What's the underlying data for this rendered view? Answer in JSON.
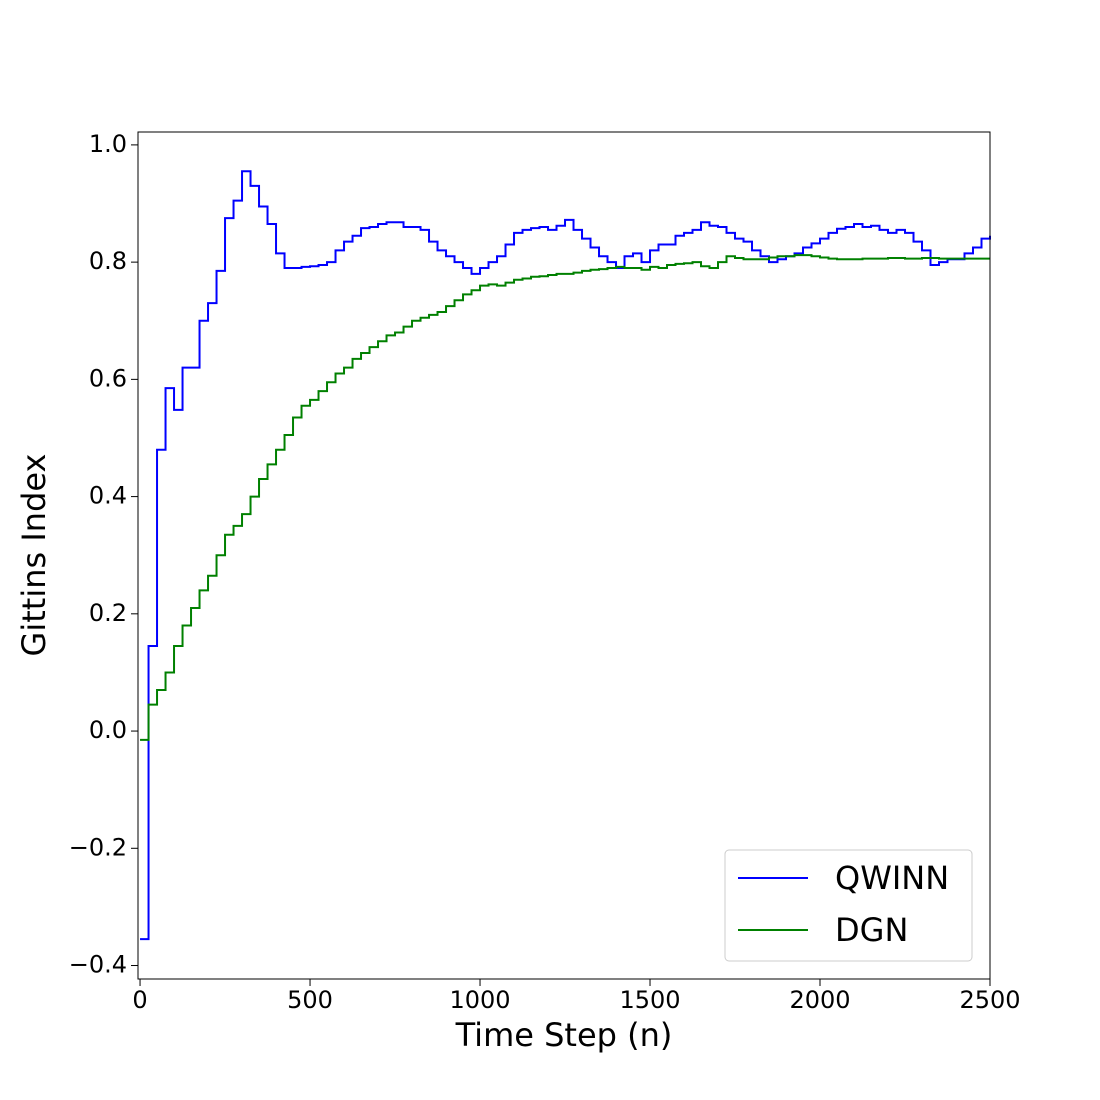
{
  "chart_data": {
    "type": "step",
    "xlabel": "Time Step (n)",
    "ylabel": "Gittins Index",
    "x": [
      0,
      25,
      50,
      75,
      100,
      125,
      150,
      175,
      200,
      225,
      250,
      275,
      300,
      325,
      350,
      375,
      400,
      425,
      450,
      475,
      500,
      525,
      550,
      575,
      600,
      625,
      650,
      675,
      700,
      725,
      750,
      775,
      800,
      825,
      850,
      875,
      900,
      925,
      950,
      975,
      1000,
      1025,
      1050,
      1075,
      1100,
      1125,
      1150,
      1175,
      1200,
      1225,
      1250,
      1275,
      1300,
      1325,
      1350,
      1375,
      1400,
      1425,
      1450,
      1475,
      1500,
      1525,
      1550,
      1575,
      1600,
      1625,
      1650,
      1675,
      1700,
      1725,
      1750,
      1775,
      1800,
      1825,
      1850,
      1875,
      1900,
      1925,
      1950,
      1975,
      2000,
      2025,
      2050,
      2075,
      2100,
      2125,
      2150,
      2175,
      2200,
      2225,
      2250,
      2275,
      2300,
      2325,
      2350,
      2375,
      2400,
      2425,
      2450,
      2475,
      2500
    ],
    "series": [
      {
        "name": "QWINN",
        "color": "#0000ff",
        "values": [
          -0.355,
          0.145,
          0.48,
          0.585,
          0.548,
          0.62,
          0.62,
          0.7,
          0.73,
          0.785,
          0.875,
          0.905,
          0.955,
          0.93,
          0.895,
          0.865,
          0.815,
          0.79,
          0.79,
          0.792,
          0.793,
          0.795,
          0.8,
          0.82,
          0.835,
          0.845,
          0.858,
          0.86,
          0.865,
          0.868,
          0.868,
          0.86,
          0.86,
          0.855,
          0.835,
          0.82,
          0.81,
          0.8,
          0.79,
          0.78,
          0.79,
          0.8,
          0.81,
          0.83,
          0.85,
          0.855,
          0.858,
          0.86,
          0.855,
          0.862,
          0.872,
          0.855,
          0.84,
          0.825,
          0.81,
          0.8,
          0.79,
          0.81,
          0.815,
          0.8,
          0.82,
          0.83,
          0.83,
          0.845,
          0.85,
          0.855,
          0.868,
          0.862,
          0.86,
          0.85,
          0.84,
          0.835,
          0.82,
          0.81,
          0.8,
          0.805,
          0.81,
          0.815,
          0.825,
          0.832,
          0.84,
          0.85,
          0.857,
          0.86,
          0.865,
          0.86,
          0.862,
          0.855,
          0.85,
          0.855,
          0.85,
          0.835,
          0.82,
          0.795,
          0.8,
          0.805,
          0.805,
          0.815,
          0.825,
          0.84,
          0.845
        ]
      },
      {
        "name": "DGN",
        "color": "#008000",
        "values": [
          -0.015,
          0.045,
          0.07,
          0.1,
          0.145,
          0.18,
          0.21,
          0.24,
          0.265,
          0.3,
          0.335,
          0.35,
          0.37,
          0.4,
          0.43,
          0.455,
          0.48,
          0.505,
          0.535,
          0.555,
          0.565,
          0.58,
          0.595,
          0.61,
          0.62,
          0.635,
          0.645,
          0.655,
          0.665,
          0.675,
          0.68,
          0.69,
          0.7,
          0.705,
          0.71,
          0.715,
          0.725,
          0.735,
          0.745,
          0.752,
          0.76,
          0.762,
          0.76,
          0.765,
          0.77,
          0.772,
          0.775,
          0.776,
          0.778,
          0.78,
          0.78,
          0.782,
          0.785,
          0.787,
          0.788,
          0.79,
          0.792,
          0.79,
          0.79,
          0.787,
          0.792,
          0.79,
          0.795,
          0.797,
          0.798,
          0.8,
          0.793,
          0.79,
          0.8,
          0.81,
          0.807,
          0.805,
          0.805,
          0.805,
          0.808,
          0.81,
          0.81,
          0.812,
          0.812,
          0.81,
          0.808,
          0.806,
          0.805,
          0.805,
          0.805,
          0.806,
          0.806,
          0.806,
          0.807,
          0.807,
          0.806,
          0.806,
          0.807,
          0.807,
          0.806,
          0.806,
          0.806,
          0.806,
          0.806,
          0.806,
          0.806
        ]
      }
    ],
    "xlim": [
      -6,
      2500
    ],
    "ylim": [
      -0.423,
      1.022
    ],
    "xticks": [
      0,
      500,
      1000,
      1500,
      2000,
      2500
    ],
    "yticks": [
      {
        "value": -0.4,
        "label": "−0.4"
      },
      {
        "value": -0.2,
        "label": "−0.2"
      },
      {
        "value": 0,
        "label": "0.0"
      },
      0.2,
      0.4,
      0.6,
      0.8,
      {
        "value": 1.0,
        "label": "1.0"
      }
    ],
    "legend": "lower right"
  }
}
